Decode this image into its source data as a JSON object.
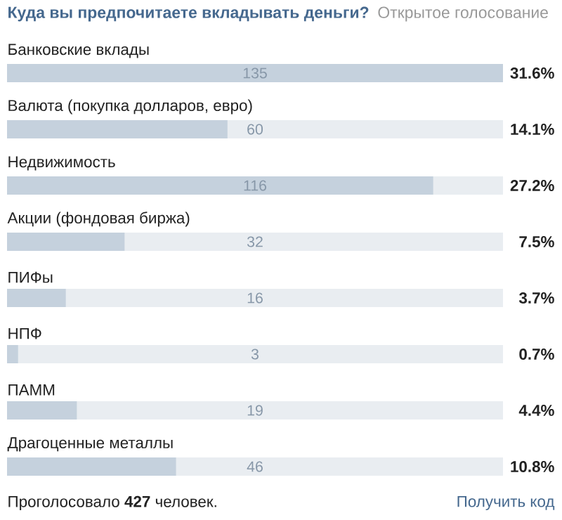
{
  "chart_data": {
    "type": "bar",
    "orientation": "horizontal",
    "title": "Куда вы предпочитаете вкладывать деньги?",
    "subtitle": "Открытое голосование",
    "categories": [
      "Банковские вклады",
      "Валюта (покупка долларов, евро)",
      "Недвижимость",
      "Акции (фондовая биржа)",
      "ПИФы",
      "НПФ",
      "ПАММ",
      "Драгоценные металлы"
    ],
    "values": [
      135,
      60,
      116,
      32,
      16,
      3,
      19,
      46
    ],
    "color": "#c5d1dd",
    "xlim": [
      0,
      135
    ],
    "data_labels": true,
    "annotations": [
      "31.6%",
      "14.1%",
      "27.2%",
      "7.5%",
      "3.7%",
      "0.7%",
      "4.4%",
      "10.8%",
      "Проголосовало **427** человек.",
      "Получить код"
    ]
  }
}
